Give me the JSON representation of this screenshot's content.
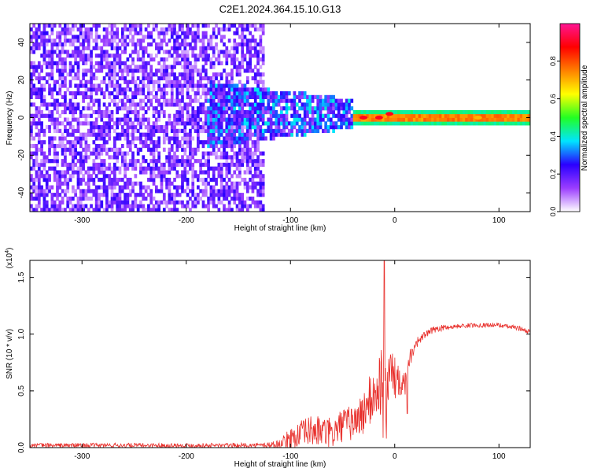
{
  "figure_title": "C2E1.2024.364.15.10.G13",
  "chart_data": [
    {
      "type": "heatmap",
      "xlabel": "Height of straight line (km)",
      "ylabel": "Frequency (Hz)",
      "xlim": [
        -350,
        130
      ],
      "ylim": [
        -50,
        50
      ],
      "xticks": [
        -300,
        -200,
        -100,
        0,
        100
      ],
      "yticks": [
        -40,
        -20,
        0,
        20,
        40
      ],
      "colorbar": {
        "label": "Normalized spectral amplitude",
        "range": [
          0,
          1
        ],
        "ticks": [
          "0.0",
          "0.2",
          "0.4",
          "0.6",
          "0.8"
        ],
        "tick_values": [
          0.0,
          0.2,
          0.4,
          0.6,
          0.8
        ],
        "colors": [
          "#ffffff",
          "#9b3dff",
          "#2a00ff",
          "#00e5ff",
          "#22ff22",
          "#ffff00",
          "#ff8000",
          "#ff0000",
          "#ff1493"
        ]
      },
      "regions": [
        {
          "x_range": [
            -350,
            -125
          ],
          "freq_range": [
            -50,
            50
          ],
          "amplitude_range": [
            0.05,
            0.25
          ],
          "description": "broadband noise"
        },
        {
          "x_range": [
            -180,
            -40
          ],
          "freq_range": [
            -15,
            20
          ],
          "amplitude_range": [
            0.1,
            0.4
          ]
        },
        {
          "x_range": [
            -40,
            130
          ],
          "freq_center": 0,
          "freq_halfwidth": 4,
          "amplitude_range": [
            0.3,
            0.95
          ]
        }
      ],
      "peaks": [
        {
          "x": -30,
          "freq": 0,
          "amplitude": 0.9
        },
        {
          "x": -15,
          "freq": 0,
          "amplitude": 0.9
        },
        {
          "x": -5,
          "freq": 2,
          "amplitude": 0.9
        },
        {
          "x": 80,
          "freq": 0,
          "amplitude": 0.7
        }
      ]
    },
    {
      "type": "line",
      "xlabel": "Height of straight line (km)",
      "ylabel": "SNR (10 * v/v)",
      "y_multiplier": "(x10",
      "y_multiplier_exp": "4",
      "xlim": [
        -350,
        130
      ],
      "ylim": [
        0,
        1.65
      ],
      "xticks": [
        -300,
        -200,
        -100,
        0,
        100
      ],
      "yticks": [
        "0.0",
        "0.5",
        "1.0",
        "1.5"
      ],
      "ytick_values": [
        0.0,
        0.5,
        1.0,
        1.5
      ],
      "series": [
        {
          "color": "#e8302c",
          "x": [
            -350,
            -300,
            -200,
            -130,
            -110,
            -100,
            -90,
            -80,
            -70,
            -60,
            -50,
            -40,
            -30,
            -25,
            -20,
            -15,
            -12,
            -10,
            -8,
            -5,
            0,
            5,
            10,
            12,
            15,
            20,
            30,
            40,
            60,
            80,
            100,
            120,
            130
          ],
          "values": [
            0.02,
            0.02,
            0.02,
            0.02,
            0.03,
            0.08,
            0.12,
            0.15,
            0.14,
            0.12,
            0.2,
            0.22,
            0.3,
            0.4,
            0.45,
            0.55,
            0.6,
            0.35,
            0.5,
            0.7,
            0.6,
            0.65,
            0.55,
            0.75,
            0.8,
            0.92,
            1.0,
            1.05,
            1.07,
            1.08,
            1.08,
            1.05,
            1.02
          ],
          "noise_amplitude": [
            0.02,
            0.02,
            0.02,
            0.02,
            0.04,
            0.1,
            0.12,
            0.14,
            0.14,
            0.14,
            0.15,
            0.16,
            0.2,
            0.22,
            0.25,
            0.3,
            0.35,
            0.6,
            0.3,
            0.25,
            0.2,
            0.18,
            0.15,
            0.1,
            0.08,
            0.05,
            0.03,
            0.03,
            0.02,
            0.02,
            0.02,
            0.02,
            0.02
          ],
          "spikes": [
            {
              "x": -10,
              "y": 1.65
            },
            {
              "x": -8,
              "y": 0.08
            },
            {
              "x": 12,
              "y": 0.3
            }
          ]
        }
      ]
    }
  ]
}
